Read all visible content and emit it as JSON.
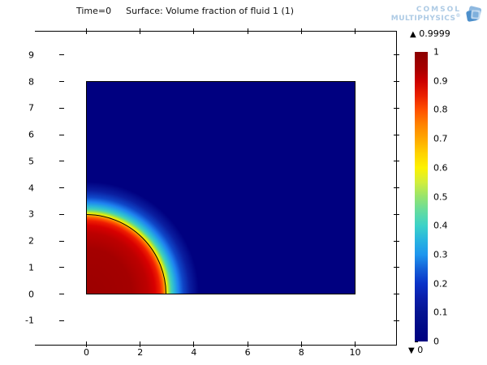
{
  "title": {
    "time": "Time=0",
    "surface": "Surface: Volume fraction of fluid 1 (1)"
  },
  "logo": {
    "line1": "COMSOL",
    "line2": "MULTIPHYSICS",
    "registered": "®"
  },
  "axes": {
    "x_ticks": [
      "0",
      "2",
      "4",
      "6",
      "8",
      "10"
    ],
    "y_ticks": [
      "9",
      "8",
      "7",
      "6",
      "5",
      "4",
      "3",
      "2",
      "1",
      "0",
      "-1"
    ]
  },
  "colorbar": {
    "max_marker": "▲",
    "max_value": "0.9999",
    "min_marker": "▼",
    "min_value": "0",
    "tick_labels": [
      "1",
      "0.9",
      "0.8",
      "0.7",
      "0.6",
      "0.5",
      "0.4",
      "0.3",
      "0.2",
      "0.1",
      "0"
    ]
  },
  "colors": {
    "fluid1_interior": "#9c0000",
    "fluid2_background": "#000080",
    "contour_line": "#000000",
    "logo_blue": "#aecbe5",
    "colormap": "rainbow (jet): dark red 1 → navy blue 0"
  },
  "chart_data": {
    "type": "heatmap",
    "title": "Time=0   Surface: Volume fraction of fluid 1 (1)",
    "xlabel": "",
    "ylabel": "",
    "x_range": [
      0,
      10
    ],
    "y_range": [
      0,
      8
    ],
    "x_ticks": [
      0,
      2,
      4,
      6,
      8,
      10
    ],
    "y_axis_ticks": [
      -1,
      0,
      1,
      2,
      3,
      4,
      5,
      6,
      7,
      8,
      9
    ],
    "color_scale_range": [
      0,
      1
    ],
    "colorbar_ticks": [
      1,
      0.9,
      0.8,
      0.7,
      0.6,
      0.5,
      0.4,
      0.3,
      0.2,
      0.1,
      0
    ],
    "displayed_max": 0.9999,
    "displayed_min": 0,
    "field_description": "Volume fraction of fluid 1: value ≈1 inside a quarter-disc bubble of radius 3 centered at the origin (0,0), value 0 in the rest of the 10×8 rectangular domain; smooth rainbow-graded interface band with a black contour line at the 0.5 level (r=3)",
    "bubble": {
      "center": [
        0,
        0
      ],
      "radius": 3,
      "value_inside": 1,
      "value_outside": 0
    },
    "colormap": "jet",
    "legend_position": "right colorbar",
    "grid": false
  }
}
